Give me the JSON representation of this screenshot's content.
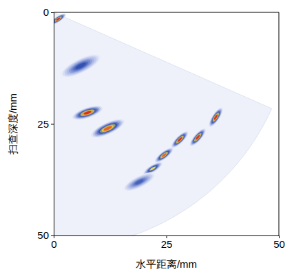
{
  "chart_data": {
    "type": "scan_image",
    "x_label": "水平距离/mm",
    "y_label": "扫查深度/mm",
    "xlim": [
      0,
      50
    ],
    "ylim": [
      0,
      50
    ],
    "xticks": [
      0,
      25,
      50
    ],
    "yticks": [
      0,
      25,
      50
    ],
    "scan_sector": {
      "radius": 53,
      "angle_range": [
        24,
        90
      ]
    },
    "blobs": {
      "x": [
        1,
        6,
        7.5,
        12,
        22,
        24.5,
        28,
        32,
        36,
        19
      ],
      "y": [
        1.5,
        12,
        22.5,
        26,
        35,
        32,
        28.5,
        28,
        23.5,
        38
      ],
      "intensity": [
        1,
        0.6,
        1,
        0.95,
        0.8,
        0.95,
        1,
        1,
        1,
        0.55
      ],
      "length": [
        4,
        10,
        7,
        8,
        5,
        5,
        5,
        5,
        5,
        8
      ]
    }
  }
}
